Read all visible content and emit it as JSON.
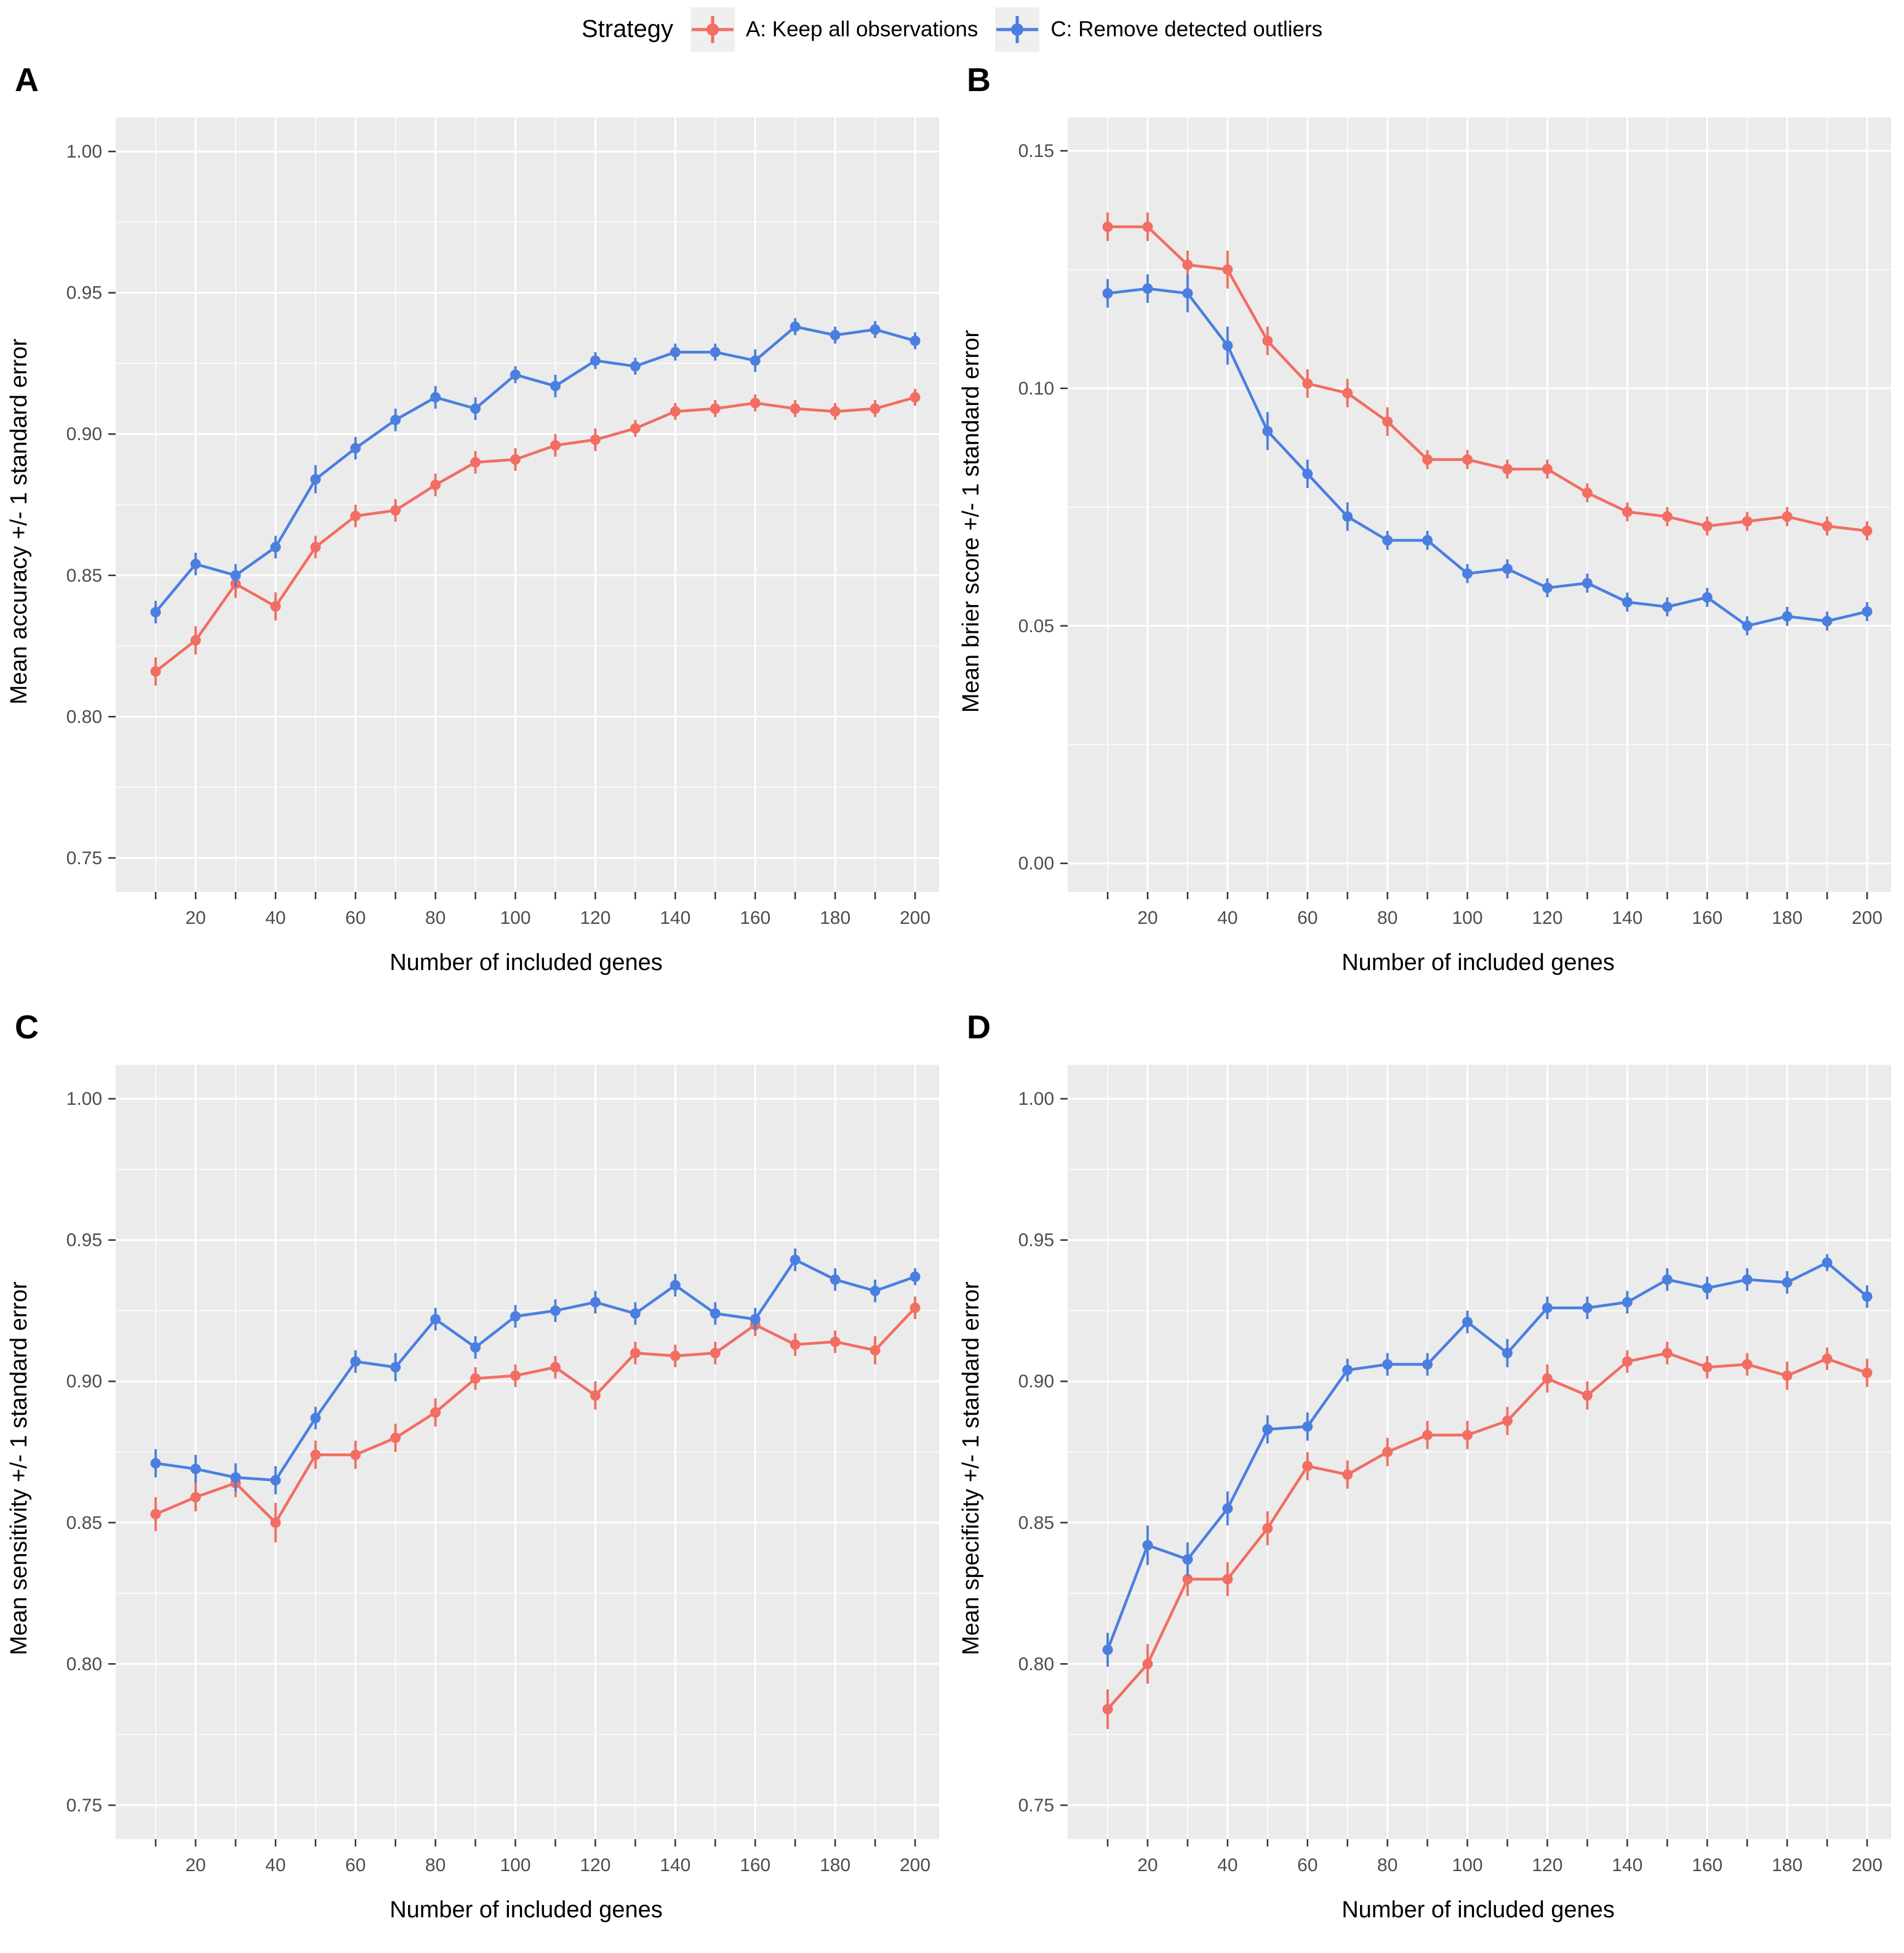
{
  "legend": {
    "title": "Strategy",
    "items": [
      {
        "label": "A: Keep all observations",
        "color": "#F26D62"
      },
      {
        "label": "C: Remove detected outliers",
        "color": "#4A7FE0"
      }
    ],
    "key_bg": "#efefef"
  },
  "style": {
    "panel_bg": "#EBEBEB",
    "grid_color": "#FFFFFF",
    "tick_label_color": "#4D4D4D",
    "tick_mark_color": "#333333"
  },
  "chart_data": [
    {
      "type": "line",
      "letter": "A",
      "ylabel": "Mean accuracy +/- 1 standard error",
      "xlabel": "Number of included genes",
      "xlim": [
        0,
        206
      ],
      "ylim": [
        0.738,
        1.012
      ],
      "x_ticks": [
        10,
        20,
        30,
        40,
        50,
        60,
        70,
        80,
        90,
        100,
        110,
        120,
        130,
        140,
        150,
        160,
        170,
        180,
        190,
        200
      ],
      "x_labeled_ticks": [
        20,
        40,
        60,
        80,
        100,
        120,
        140,
        160,
        180,
        200
      ],
      "y_ticks": [
        0.75,
        0.8,
        0.85,
        0.9,
        0.95,
        1.0
      ],
      "y_tick_labels": [
        "0.75",
        "0.80",
        "0.85",
        "0.90",
        "0.95",
        "1.00"
      ],
      "y_minor_step": 0.025,
      "x": [
        10,
        20,
        30,
        40,
        50,
        60,
        70,
        80,
        90,
        100,
        110,
        120,
        130,
        140,
        150,
        160,
        170,
        180,
        190,
        200
      ],
      "series": [
        {
          "name": "A: Keep all observations",
          "color": "#F26D62",
          "values": [
            0.816,
            0.827,
            0.847,
            0.839,
            0.86,
            0.871,
            0.873,
            0.882,
            0.89,
            0.891,
            0.896,
            0.898,
            0.902,
            0.908,
            0.909,
            0.911,
            0.909,
            0.908,
            0.909,
            0.913
          ],
          "se": [
            0.005,
            0.005,
            0.005,
            0.005,
            0.004,
            0.004,
            0.004,
            0.004,
            0.004,
            0.004,
            0.004,
            0.004,
            0.003,
            0.003,
            0.003,
            0.003,
            0.003,
            0.003,
            0.003,
            0.003
          ]
        },
        {
          "name": "C: Remove detected outliers",
          "color": "#4A7FE0",
          "values": [
            0.837,
            0.854,
            0.85,
            0.86,
            0.884,
            0.895,
            0.905,
            0.913,
            0.909,
            0.921,
            0.917,
            0.926,
            0.924,
            0.929,
            0.929,
            0.926,
            0.938,
            0.935,
            0.937,
            0.933
          ],
          "se": [
            0.004,
            0.004,
            0.004,
            0.004,
            0.005,
            0.004,
            0.004,
            0.004,
            0.004,
            0.003,
            0.004,
            0.003,
            0.003,
            0.003,
            0.003,
            0.004,
            0.003,
            0.003,
            0.003,
            0.003
          ]
        }
      ]
    },
    {
      "type": "line",
      "letter": "B",
      "ylabel": "Mean brier score +/- 1 standard error",
      "xlabel": "Number of included genes",
      "xlim": [
        0,
        206
      ],
      "ylim": [
        -0.006,
        0.157
      ],
      "x_ticks": [
        10,
        20,
        30,
        40,
        50,
        60,
        70,
        80,
        90,
        100,
        110,
        120,
        130,
        140,
        150,
        160,
        170,
        180,
        190,
        200
      ],
      "x_labeled_ticks": [
        20,
        40,
        60,
        80,
        100,
        120,
        140,
        160,
        180,
        200
      ],
      "y_ticks": [
        0.0,
        0.05,
        0.1,
        0.15
      ],
      "y_tick_labels": [
        "0.00",
        "0.05",
        "0.10",
        "0.15"
      ],
      "y_minor_step": 0.025,
      "x": [
        10,
        20,
        30,
        40,
        50,
        60,
        70,
        80,
        90,
        100,
        110,
        120,
        130,
        140,
        150,
        160,
        170,
        180,
        190,
        200
      ],
      "series": [
        {
          "name": "A: Keep all observations",
          "color": "#F26D62",
          "values": [
            0.134,
            0.134,
            0.126,
            0.125,
            0.11,
            0.101,
            0.099,
            0.093,
            0.085,
            0.085,
            0.083,
            0.083,
            0.078,
            0.074,
            0.073,
            0.071,
            0.072,
            0.073,
            0.071,
            0.07
          ],
          "se": [
            0.003,
            0.003,
            0.003,
            0.004,
            0.003,
            0.003,
            0.003,
            0.003,
            0.002,
            0.002,
            0.002,
            0.002,
            0.002,
            0.002,
            0.002,
            0.002,
            0.002,
            0.002,
            0.002,
            0.002
          ]
        },
        {
          "name": "C: Remove detected outliers",
          "color": "#4A7FE0",
          "values": [
            0.12,
            0.121,
            0.12,
            0.109,
            0.091,
            0.082,
            0.073,
            0.068,
            0.068,
            0.061,
            0.062,
            0.058,
            0.059,
            0.055,
            0.054,
            0.056,
            0.05,
            0.052,
            0.051,
            0.053
          ],
          "se": [
            0.003,
            0.003,
            0.004,
            0.004,
            0.004,
            0.003,
            0.003,
            0.002,
            0.002,
            0.002,
            0.002,
            0.002,
            0.002,
            0.002,
            0.002,
            0.002,
            0.002,
            0.002,
            0.002,
            0.002
          ]
        }
      ]
    },
    {
      "type": "line",
      "letter": "C",
      "ylabel": "Mean sensitivity +/- 1 standard error",
      "xlabel": "Number of included genes",
      "xlim": [
        0,
        206
      ],
      "ylim": [
        0.738,
        1.012
      ],
      "x_ticks": [
        10,
        20,
        30,
        40,
        50,
        60,
        70,
        80,
        90,
        100,
        110,
        120,
        130,
        140,
        150,
        160,
        170,
        180,
        190,
        200
      ],
      "x_labeled_ticks": [
        20,
        40,
        60,
        80,
        100,
        120,
        140,
        160,
        180,
        200
      ],
      "y_ticks": [
        0.75,
        0.8,
        0.85,
        0.9,
        0.95,
        1.0
      ],
      "y_tick_labels": [
        "0.75",
        "0.80",
        "0.85",
        "0.90",
        "0.95",
        "1.00"
      ],
      "y_minor_step": 0.025,
      "x": [
        10,
        20,
        30,
        40,
        50,
        60,
        70,
        80,
        90,
        100,
        110,
        120,
        130,
        140,
        150,
        160,
        170,
        180,
        190,
        200
      ],
      "series": [
        {
          "name": "A: Keep all observations",
          "color": "#F26D62",
          "values": [
            0.853,
            0.859,
            0.864,
            0.85,
            0.874,
            0.874,
            0.88,
            0.889,
            0.901,
            0.902,
            0.905,
            0.895,
            0.91,
            0.909,
            0.91,
            0.92,
            0.913,
            0.914,
            0.911,
            0.926
          ],
          "se": [
            0.006,
            0.005,
            0.005,
            0.007,
            0.005,
            0.005,
            0.005,
            0.005,
            0.004,
            0.004,
            0.004,
            0.005,
            0.004,
            0.004,
            0.004,
            0.004,
            0.004,
            0.004,
            0.005,
            0.004
          ]
        },
        {
          "name": "C: Remove detected outliers",
          "color": "#4A7FE0",
          "values": [
            0.871,
            0.869,
            0.866,
            0.865,
            0.887,
            0.907,
            0.905,
            0.922,
            0.912,
            0.923,
            0.925,
            0.928,
            0.924,
            0.934,
            0.924,
            0.922,
            0.943,
            0.936,
            0.932,
            0.937
          ],
          "se": [
            0.005,
            0.005,
            0.005,
            0.005,
            0.004,
            0.004,
            0.005,
            0.004,
            0.004,
            0.004,
            0.004,
            0.004,
            0.004,
            0.004,
            0.004,
            0.004,
            0.004,
            0.004,
            0.004,
            0.003
          ]
        }
      ]
    },
    {
      "type": "line",
      "letter": "D",
      "ylabel": "Mean specificity +/- 1 standard error",
      "xlabel": "Number of included genes",
      "xlim": [
        0,
        206
      ],
      "ylim": [
        0.738,
        1.012
      ],
      "x_ticks": [
        10,
        20,
        30,
        40,
        50,
        60,
        70,
        80,
        90,
        100,
        110,
        120,
        130,
        140,
        150,
        160,
        170,
        180,
        190,
        200
      ],
      "x_labeled_ticks": [
        20,
        40,
        60,
        80,
        100,
        120,
        140,
        160,
        180,
        200
      ],
      "y_ticks": [
        0.75,
        0.8,
        0.85,
        0.9,
        0.95,
        1.0
      ],
      "y_tick_labels": [
        "0.75",
        "0.80",
        "0.85",
        "0.90",
        "0.95",
        "1.00"
      ],
      "y_minor_step": 0.025,
      "x": [
        10,
        20,
        30,
        40,
        50,
        60,
        70,
        80,
        90,
        100,
        110,
        120,
        130,
        140,
        150,
        160,
        170,
        180,
        190,
        200
      ],
      "series": [
        {
          "name": "A: Keep all observations",
          "color": "#F26D62",
          "values": [
            0.784,
            0.8,
            0.83,
            0.83,
            0.848,
            0.87,
            0.867,
            0.875,
            0.881,
            0.881,
            0.886,
            0.901,
            0.895,
            0.907,
            0.91,
            0.905,
            0.906,
            0.902,
            0.908,
            0.903
          ],
          "se": [
            0.007,
            0.007,
            0.006,
            0.006,
            0.006,
            0.005,
            0.005,
            0.005,
            0.005,
            0.005,
            0.005,
            0.005,
            0.005,
            0.004,
            0.004,
            0.004,
            0.004,
            0.005,
            0.004,
            0.005
          ]
        },
        {
          "name": "C: Remove detected outliers",
          "color": "#4A7FE0",
          "values": [
            0.805,
            0.842,
            0.837,
            0.855,
            0.883,
            0.884,
            0.904,
            0.906,
            0.906,
            0.921,
            0.91,
            0.926,
            0.926,
            0.928,
            0.936,
            0.933,
            0.936,
            0.935,
            0.942,
            0.93
          ],
          "se": [
            0.006,
            0.007,
            0.006,
            0.006,
            0.005,
            0.005,
            0.004,
            0.004,
            0.004,
            0.004,
            0.005,
            0.004,
            0.004,
            0.004,
            0.004,
            0.004,
            0.004,
            0.004,
            0.003,
            0.004
          ]
        }
      ]
    }
  ]
}
